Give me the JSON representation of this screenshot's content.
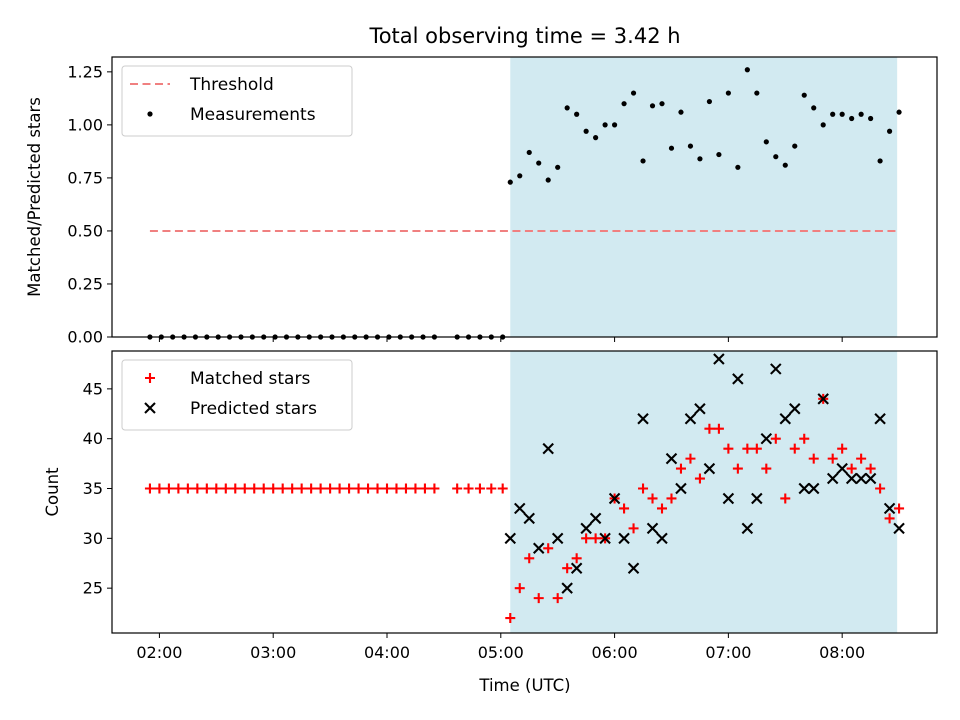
{
  "chart_data": [
    {
      "type": "scatter",
      "title": "Total observing time = 3.42 h",
      "xlabel": "",
      "ylabel": "Matched/Predicted stars",
      "x_unit": "UTC time",
      "xlim": [
        "01:35",
        "08:50"
      ],
      "ylim": [
        0,
        1.32
      ],
      "yticks": [
        "0.00",
        "0.25",
        "0.50",
        "0.75",
        "1.00",
        "1.25"
      ],
      "xticks": [
        "02:00",
        "03:00",
        "04:00",
        "05:00",
        "06:00",
        "07:00",
        "08:00"
      ],
      "shaded_span": [
        "05:05",
        "08:29"
      ],
      "shade_color": "#add8e6",
      "legend_position": "upper left",
      "threshold": {
        "name": "Threshold",
        "y": 0.5,
        "x_range": [
          "01:55",
          "08:29"
        ],
        "color": "#f08080",
        "style": "dashed"
      },
      "series": [
        {
          "name": "Measurements",
          "color": "#000000",
          "marker": "dot",
          "points": [
            [
              "01:55",
              0
            ],
            [
              "02:01",
              0
            ],
            [
              "02:07",
              0
            ],
            [
              "02:13",
              0
            ],
            [
              "02:19",
              0
            ],
            [
              "02:25",
              0
            ],
            [
              "02:31",
              0
            ],
            [
              "02:37",
              0
            ],
            [
              "02:43",
              0
            ],
            [
              "02:49",
              0
            ],
            [
              "02:55",
              0
            ],
            [
              "03:01",
              0
            ],
            [
              "03:07",
              0
            ],
            [
              "03:13",
              0
            ],
            [
              "03:19",
              0
            ],
            [
              "03:25",
              0
            ],
            [
              "03:31",
              0
            ],
            [
              "03:37",
              0
            ],
            [
              "03:43",
              0
            ],
            [
              "03:49",
              0
            ],
            [
              "03:55",
              0
            ],
            [
              "04:01",
              0
            ],
            [
              "04:07",
              0
            ],
            [
              "04:13",
              0
            ],
            [
              "04:19",
              0
            ],
            [
              "04:25",
              0
            ],
            [
              "04:37",
              0
            ],
            [
              "04:43",
              0
            ],
            [
              "04:49",
              0
            ],
            [
              "04:55",
              0
            ],
            [
              "05:01",
              0
            ],
            [
              "05:05",
              0.73
            ],
            [
              "05:10",
              0.76
            ],
            [
              "05:15",
              0.87
            ],
            [
              "05:20",
              0.82
            ],
            [
              "05:25",
              0.74
            ],
            [
              "05:30",
              0.8
            ],
            [
              "05:35",
              1.08
            ],
            [
              "05:40",
              1.05
            ],
            [
              "05:45",
              0.97
            ],
            [
              "05:50",
              0.94
            ],
            [
              "05:55",
              1.0
            ],
            [
              "06:00",
              1.0
            ],
            [
              "06:05",
              1.1
            ],
            [
              "06:10",
              1.15
            ],
            [
              "06:15",
              0.83
            ],
            [
              "06:20",
              1.09
            ],
            [
              "06:25",
              1.1
            ],
            [
              "06:30",
              0.89
            ],
            [
              "06:35",
              1.06
            ],
            [
              "06:40",
              0.9
            ],
            [
              "06:45",
              0.84
            ],
            [
              "06:50",
              1.11
            ],
            [
              "06:55",
              0.86
            ],
            [
              "07:00",
              1.15
            ],
            [
              "07:05",
              0.8
            ],
            [
              "07:10",
              1.26
            ],
            [
              "07:15",
              1.15
            ],
            [
              "07:20",
              0.92
            ],
            [
              "07:25",
              0.85
            ],
            [
              "07:30",
              0.81
            ],
            [
              "07:35",
              0.9
            ],
            [
              "07:40",
              1.14
            ],
            [
              "07:45",
              1.08
            ],
            [
              "07:50",
              1.0
            ],
            [
              "07:55",
              1.05
            ],
            [
              "08:00",
              1.05
            ],
            [
              "08:05",
              1.03
            ],
            [
              "08:10",
              1.05
            ],
            [
              "08:15",
              1.03
            ],
            [
              "08:20",
              0.83
            ],
            [
              "08:25",
              0.97
            ],
            [
              "08:30",
              1.06
            ]
          ]
        }
      ]
    },
    {
      "type": "scatter",
      "title": "",
      "xlabel": "Time (UTC)",
      "ylabel": "Count",
      "x_unit": "UTC time",
      "xlim": [
        "01:35",
        "08:50"
      ],
      "ylim": [
        20.5,
        48.8
      ],
      "yticks": [
        "25",
        "30",
        "35",
        "40",
        "45"
      ],
      "xticks": [
        "02:00",
        "03:00",
        "04:00",
        "05:00",
        "06:00",
        "07:00",
        "08:00"
      ],
      "shaded_span": [
        "05:05",
        "08:29"
      ],
      "shade_color": "#add8e6",
      "legend_position": "upper left",
      "series": [
        {
          "name": "Matched stars",
          "color": "#ff0000",
          "marker": "plus",
          "points": [
            [
              "01:55",
              35
            ],
            [
              "02:00",
              35
            ],
            [
              "02:05",
              35
            ],
            [
              "02:10",
              35
            ],
            [
              "02:15",
              35
            ],
            [
              "02:20",
              35
            ],
            [
              "02:25",
              35
            ],
            [
              "02:30",
              35
            ],
            [
              "02:35",
              35
            ],
            [
              "02:40",
              35
            ],
            [
              "02:45",
              35
            ],
            [
              "02:50",
              35
            ],
            [
              "02:55",
              35
            ],
            [
              "03:00",
              35
            ],
            [
              "03:05",
              35
            ],
            [
              "03:10",
              35
            ],
            [
              "03:15",
              35
            ],
            [
              "03:20",
              35
            ],
            [
              "03:25",
              35
            ],
            [
              "03:30",
              35
            ],
            [
              "03:35",
              35
            ],
            [
              "03:40",
              35
            ],
            [
              "03:45",
              35
            ],
            [
              "03:50",
              35
            ],
            [
              "03:55",
              35
            ],
            [
              "04:00",
              35
            ],
            [
              "04:05",
              35
            ],
            [
              "04:10",
              35
            ],
            [
              "04:15",
              35
            ],
            [
              "04:20",
              35
            ],
            [
              "04:25",
              35
            ],
            [
              "04:37",
              35
            ],
            [
              "04:43",
              35
            ],
            [
              "04:49",
              35
            ],
            [
              "04:55",
              35
            ],
            [
              "05:01",
              35
            ],
            [
              "05:05",
              22
            ],
            [
              "05:10",
              25
            ],
            [
              "05:15",
              28
            ],
            [
              "05:20",
              24
            ],
            [
              "05:25",
              29
            ],
            [
              "05:30",
              24
            ],
            [
              "05:35",
              27
            ],
            [
              "05:40",
              28
            ],
            [
              "05:45",
              30
            ],
            [
              "05:50",
              30
            ],
            [
              "05:55",
              30
            ],
            [
              "06:00",
              34
            ],
            [
              "06:05",
              33
            ],
            [
              "06:10",
              31
            ],
            [
              "06:15",
              35
            ],
            [
              "06:20",
              34
            ],
            [
              "06:25",
              33
            ],
            [
              "06:30",
              34
            ],
            [
              "06:35",
              37
            ],
            [
              "06:40",
              38
            ],
            [
              "06:45",
              36
            ],
            [
              "06:50",
              41
            ],
            [
              "06:55",
              41
            ],
            [
              "07:00",
              39
            ],
            [
              "07:05",
              37
            ],
            [
              "07:10",
              39
            ],
            [
              "07:15",
              39
            ],
            [
              "07:20",
              37
            ],
            [
              "07:25",
              40
            ],
            [
              "07:30",
              34
            ],
            [
              "07:35",
              39
            ],
            [
              "07:40",
              40
            ],
            [
              "07:45",
              38
            ],
            [
              "07:50",
              44
            ],
            [
              "07:55",
              38
            ],
            [
              "08:00",
              39
            ],
            [
              "08:05",
              37
            ],
            [
              "08:10",
              38
            ],
            [
              "08:15",
              37
            ],
            [
              "08:20",
              35
            ],
            [
              "08:25",
              32
            ],
            [
              "08:30",
              33
            ]
          ]
        },
        {
          "name": "Predicted stars",
          "color": "#000000",
          "marker": "x",
          "points": [
            [
              "05:05",
              30
            ],
            [
              "05:10",
              33
            ],
            [
              "05:15",
              32
            ],
            [
              "05:20",
              29
            ],
            [
              "05:25",
              39
            ],
            [
              "05:30",
              30
            ],
            [
              "05:35",
              25
            ],
            [
              "05:40",
              27
            ],
            [
              "05:45",
              31
            ],
            [
              "05:50",
              32
            ],
            [
              "05:55",
              30
            ],
            [
              "06:00",
              34
            ],
            [
              "06:05",
              30
            ],
            [
              "06:10",
              27
            ],
            [
              "06:15",
              42
            ],
            [
              "06:20",
              31
            ],
            [
              "06:25",
              30
            ],
            [
              "06:30",
              38
            ],
            [
              "06:35",
              35
            ],
            [
              "06:40",
              42
            ],
            [
              "06:45",
              43
            ],
            [
              "06:50",
              37
            ],
            [
              "06:55",
              48
            ],
            [
              "07:00",
              34
            ],
            [
              "07:05",
              46
            ],
            [
              "07:10",
              31
            ],
            [
              "07:15",
              34
            ],
            [
              "07:20",
              40
            ],
            [
              "07:25",
              47
            ],
            [
              "07:30",
              42
            ],
            [
              "07:35",
              43
            ],
            [
              "07:40",
              35
            ],
            [
              "07:45",
              35
            ],
            [
              "07:50",
              44
            ],
            [
              "07:55",
              36
            ],
            [
              "08:00",
              37
            ],
            [
              "08:05",
              36
            ],
            [
              "08:10",
              36
            ],
            [
              "08:15",
              36
            ],
            [
              "08:20",
              42
            ],
            [
              "08:25",
              33
            ],
            [
              "08:30",
              31
            ]
          ]
        }
      ]
    }
  ]
}
